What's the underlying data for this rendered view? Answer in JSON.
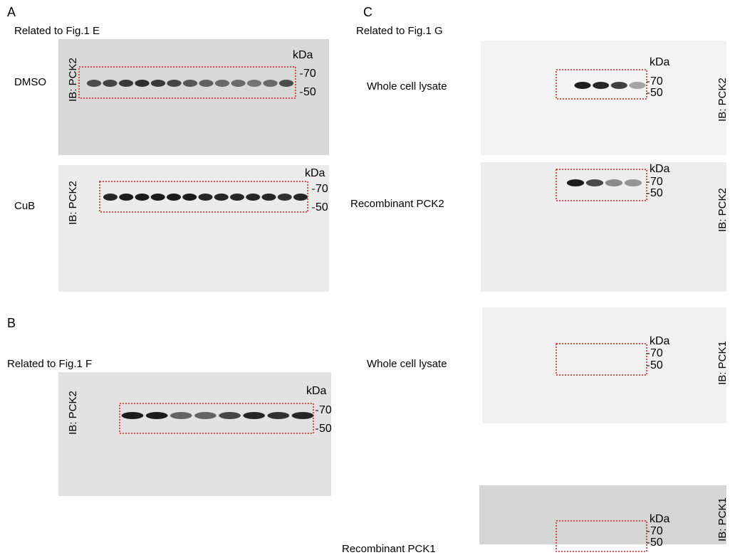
{
  "panels": [
    {
      "letter": "A",
      "caption": "Related to Fig.1 E",
      "blots": [
        {
          "label": "DMSO",
          "antibody": "IB: PCK2",
          "unit": "kDa",
          "markers": [
            "70",
            "50"
          ]
        },
        {
          "label": "CuB",
          "antibody": "IB: PCK2",
          "unit": "kDa",
          "markers": [
            "70",
            "50"
          ]
        }
      ]
    },
    {
      "letter": "B",
      "caption": "Related to Fig.1 F",
      "blots": [
        {
          "antibody": "IB: PCK2",
          "unit": "kDa",
          "markers": [
            "70",
            "50"
          ]
        }
      ]
    },
    {
      "letter": "C",
      "caption": "Related to Fig.1 G",
      "blots": [
        {
          "label": "Whole cell lysate",
          "antibody": "IB: PCK2",
          "unit": "kDa",
          "markers": [
            "70",
            "50"
          ]
        },
        {
          "label": "Recombinant PCK2",
          "antibody": "IB: PCK2",
          "unit": "kDa",
          "markers": [
            "70",
            "50"
          ]
        },
        {
          "label": "Whole cell lysate",
          "antibody": "IB: PCK1",
          "unit": "kDa",
          "markers": [
            "70",
            "50"
          ]
        },
        {
          "label": "Recombinant PCK1",
          "antibody": "IB: PCK1",
          "unit": "kDa",
          "markers": [
            "70",
            "50"
          ]
        }
      ]
    }
  ]
}
